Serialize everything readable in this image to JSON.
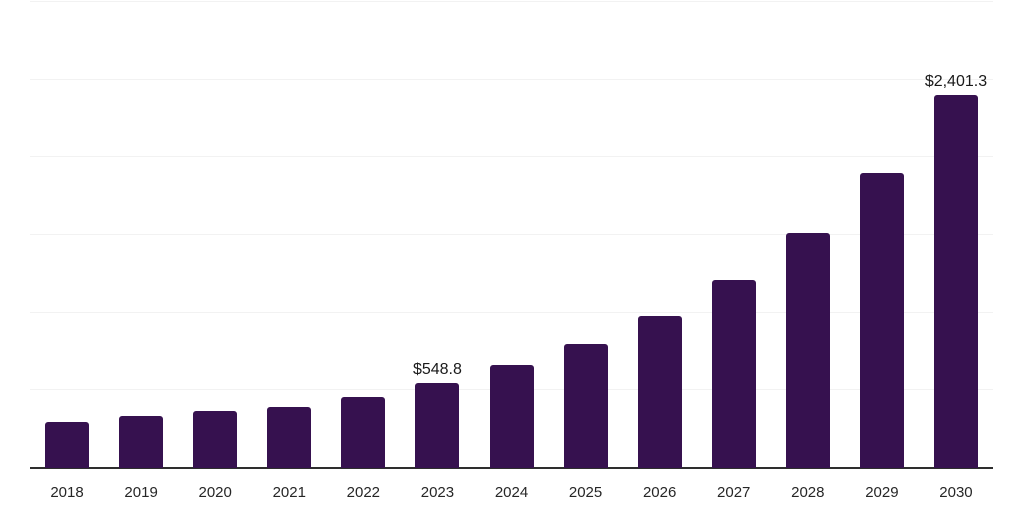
{
  "chart": {
    "background_color": "#ffffff",
    "bar_color": "#36114F",
    "gridline_color": "#f2f2f2",
    "axis_line_color": "#2e2e2e",
    "value_label_color": "#1a1a1a",
    "tick_label_color": "#262626"
  },
  "chart_data": {
    "type": "bar",
    "title": "",
    "xlabel": "",
    "ylabel": "",
    "categories": [
      "2018",
      "2019",
      "2020",
      "2021",
      "2022",
      "2023",
      "2024",
      "2025",
      "2026",
      "2027",
      "2028",
      "2029",
      "2030"
    ],
    "values": [
      295,
      335,
      370,
      390,
      460,
      548.8,
      660,
      800,
      980,
      1210,
      1510,
      1900,
      2401.3
    ],
    "data_labels": {
      "2023": "$548.8",
      "2030": "$2,401.3"
    },
    "ylim": [
      0,
      3000
    ],
    "gridline_values": [
      500,
      1000,
      1500,
      2000,
      2500,
      3000
    ],
    "grid": "horizontal-only",
    "legend_position": "none",
    "y_axis_ticks_visible": false,
    "x_axis_line_visible": true
  }
}
